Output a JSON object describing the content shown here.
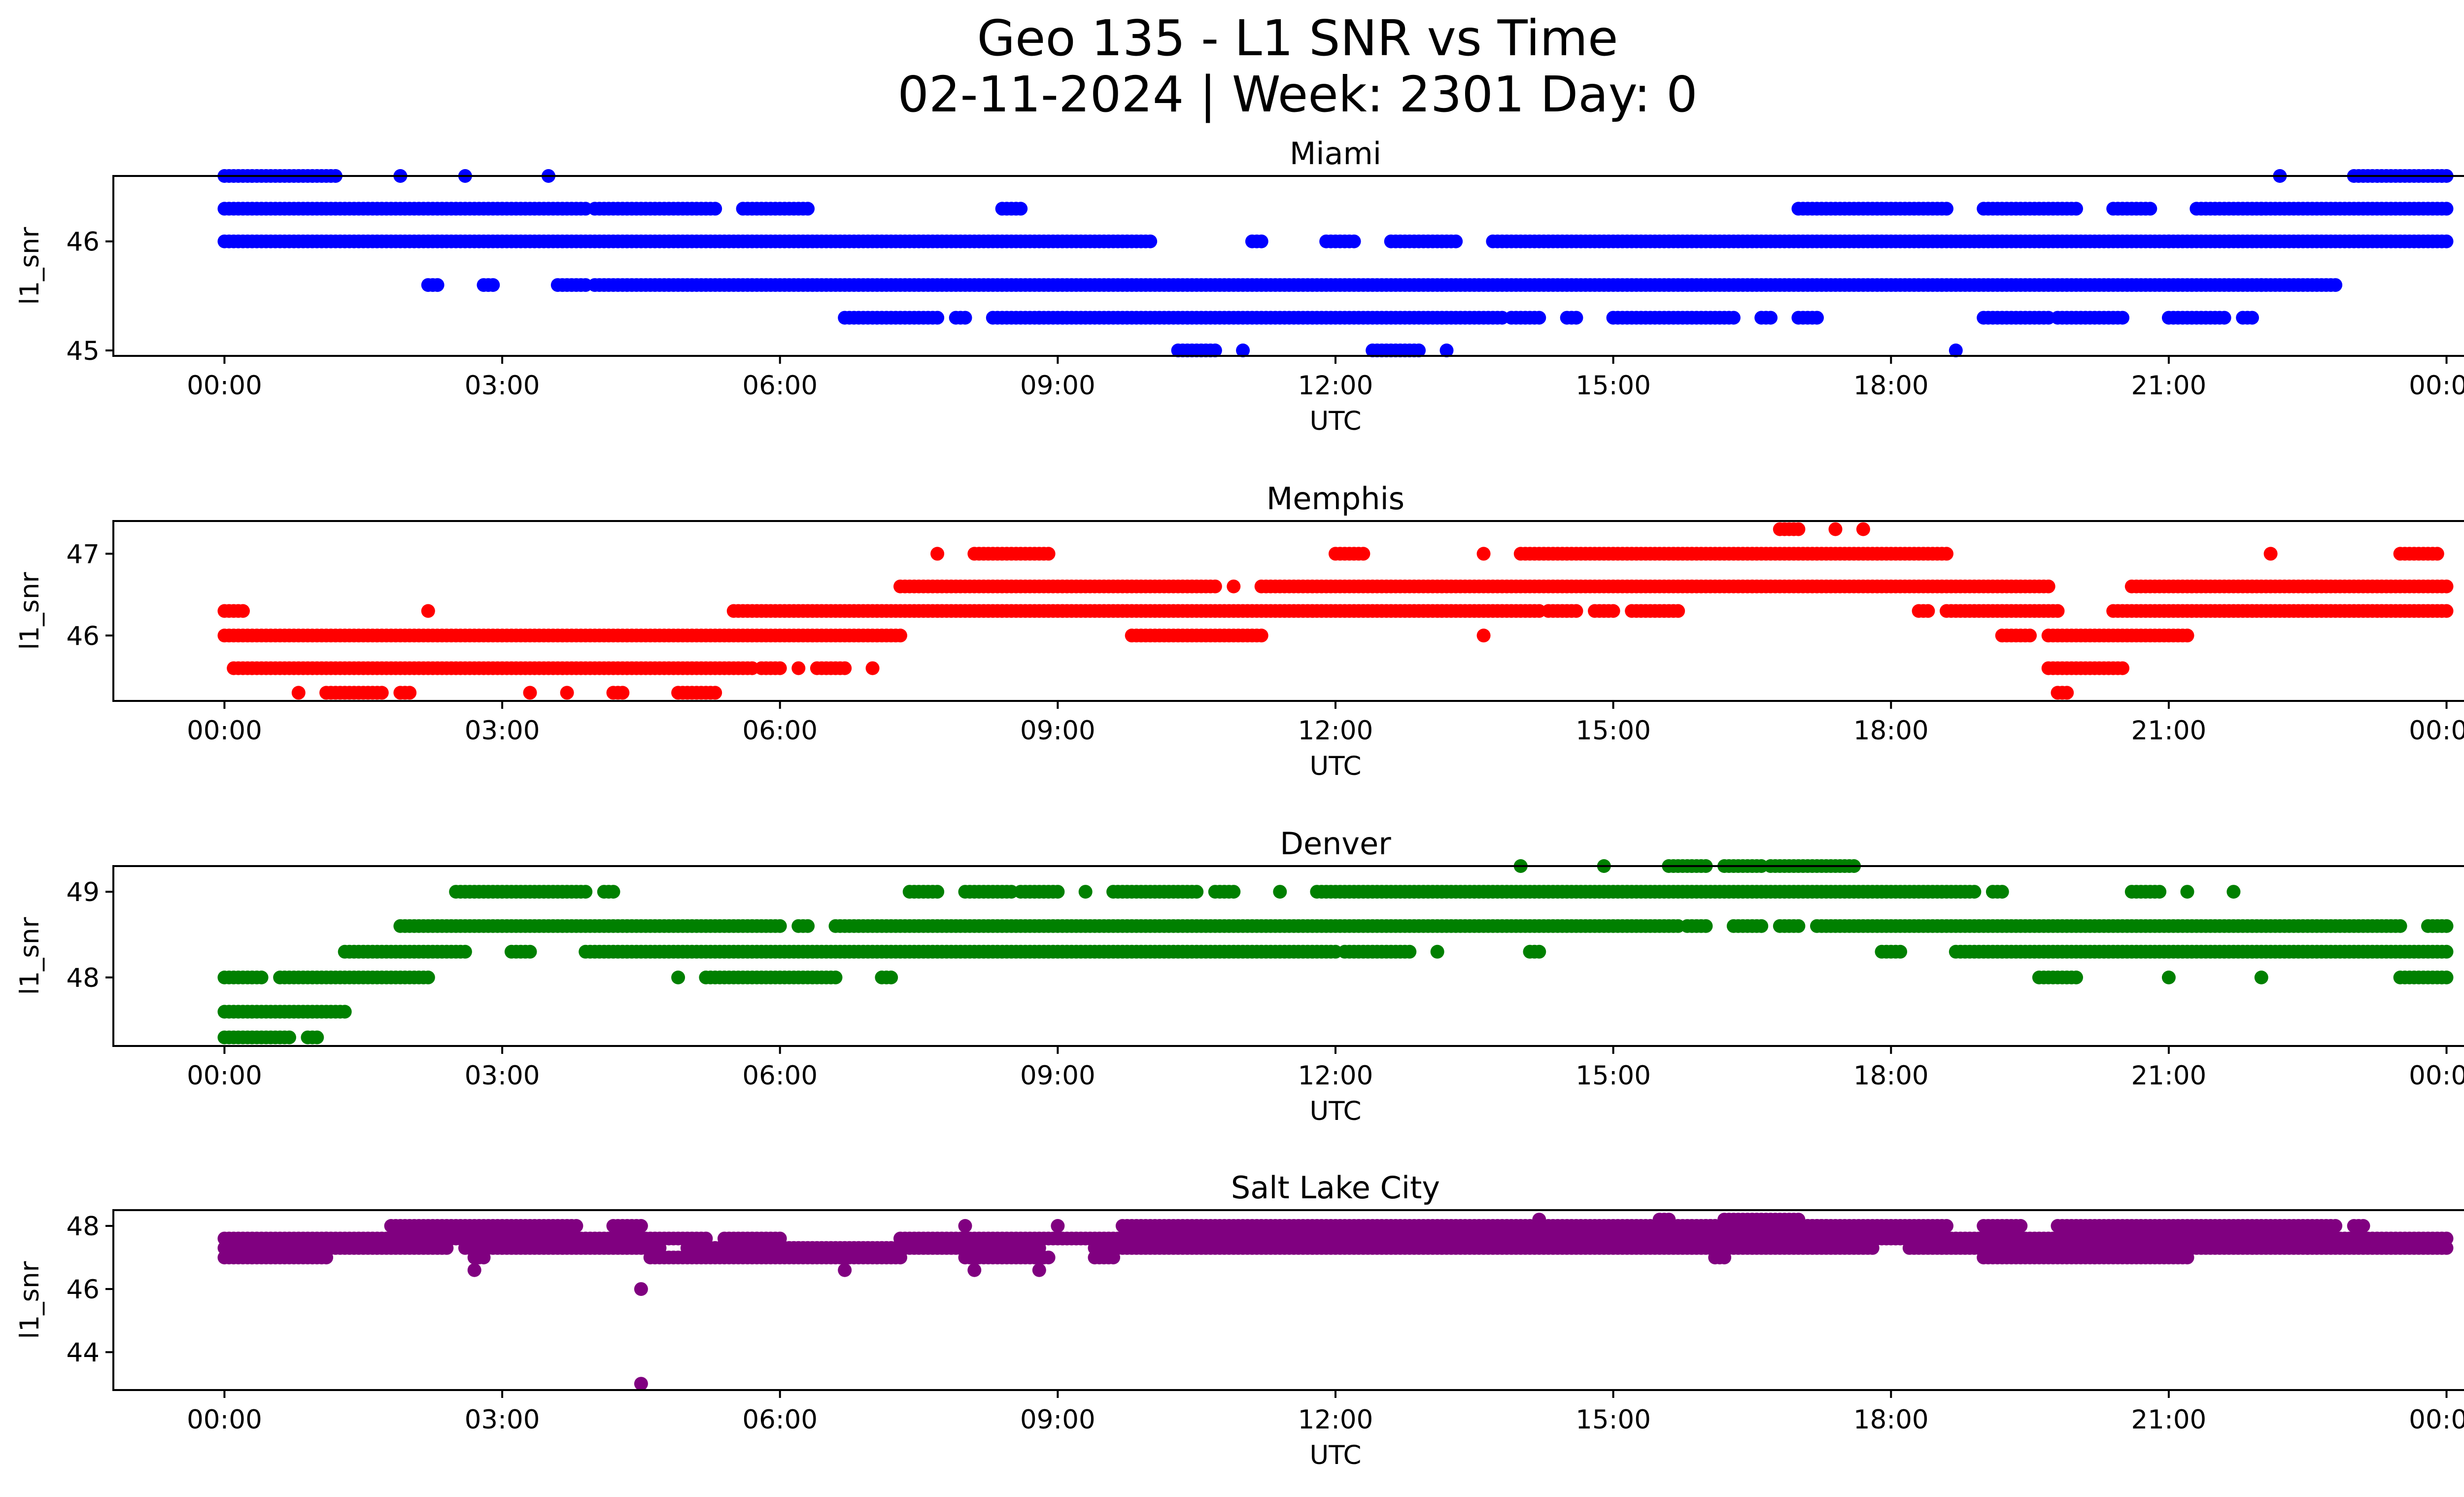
{
  "chart_data": {
    "type": "scatter",
    "title": "Geo 135 - L1 SNR vs Time",
    "subtitle": "02-11-2024 | Week: 2301 Day: 0",
    "xlabel": "UTC",
    "ylabel": "l1_snr",
    "x_unit": "hours UTC",
    "x_range": [
      -1.2,
      25.2
    ],
    "x_ticks": [
      0,
      3,
      6,
      9,
      12,
      15,
      18,
      21,
      24
    ],
    "x_tick_labels": [
      "00:00",
      "03:00",
      "06:00",
      "09:00",
      "12:00",
      "15:00",
      "18:00",
      "21:00",
      "00:00"
    ],
    "panels": [
      {
        "title": "Miami",
        "color": "#0000ff",
        "ylim": [
          44.95,
          46.6
        ],
        "yticks": [
          45,
          46
        ],
        "levels": [
          {
            "y": 46.3,
            "segments": [
              [
                0,
                3.9
              ],
              [
                4.0,
                5.3
              ],
              [
                5.6,
                6.3
              ],
              [
                8.4,
                8.6
              ],
              [
                17.0,
                18.6
              ],
              [
                19.0,
                20.0
              ],
              [
                20.4,
                20.8
              ],
              [
                21.3,
                22.0
              ],
              [
                22.0,
                24.0
              ]
            ]
          },
          {
            "y": 46.0,
            "segments": [
              [
                0,
                10.0
              ],
              [
                11.1,
                11.2
              ],
              [
                11.9,
                12.2
              ],
              [
                12.6,
                13.3
              ],
              [
                13.7,
                21.0
              ],
              [
                21.0,
                24.0
              ]
            ]
          },
          {
            "y": 45.6,
            "segments": [
              [
                2.2,
                2.3
              ],
              [
                2.8,
                2.9
              ],
              [
                3.6,
                3.9
              ],
              [
                4.0,
                22.0
              ],
              [
                22.0,
                22.8
              ]
            ]
          },
          {
            "y": 45.3,
            "segments": [
              [
                6.7,
                7.7
              ],
              [
                7.9,
                8.0
              ],
              [
                8.3,
                8.8
              ],
              [
                8.8,
                13.8
              ],
              [
                13.9,
                14.2
              ],
              [
                14.5,
                14.6
              ],
              [
                15.0,
                16.3
              ],
              [
                16.6,
                16.7
              ],
              [
                17.0,
                17.2
              ],
              [
                19.0,
                19.7
              ],
              [
                19.8,
                20.5
              ],
              [
                21.0,
                21.6
              ],
              [
                21.8,
                21.9
              ]
            ]
          },
          {
            "y": 45.0,
            "segments": [
              [
                10.3,
                10.7
              ],
              [
                11.0,
                11.0
              ],
              [
                12.4,
                12.9
              ],
              [
                13.2,
                13.2
              ],
              [
                18.7,
                18.7
              ]
            ]
          },
          {
            "y": 46.6,
            "segments": [
              [
                0,
                1.2
              ],
              [
                1.9,
                1.9
              ],
              [
                2.6,
                2.6
              ],
              [
                3.5,
                3.5
              ],
              [
                22.2,
                22.2
              ],
              [
                23.0,
                24.0
              ]
            ]
          }
        ]
      },
      {
        "title": "Memphis",
        "color": "#ff0000",
        "ylim": [
          45.2,
          47.4
        ],
        "yticks": [
          46,
          47
        ],
        "levels": [
          {
            "y": 47.3,
            "segments": [
              [
                16.8,
                17.0
              ],
              [
                17.4,
                17.4
              ],
              [
                17.7,
                17.7
              ]
            ]
          },
          {
            "y": 47.0,
            "segments": [
              [
                7.7,
                7.7
              ],
              [
                8.1,
                8.9
              ],
              [
                12.0,
                12.3
              ],
              [
                13.6,
                13.6
              ],
              [
                14.0,
                18.6
              ],
              [
                22.1,
                22.1
              ],
              [
                23.5,
                23.9
              ]
            ]
          },
          {
            "y": 46.6,
            "segments": [
              [
                7.3,
                10.7
              ],
              [
                10.9,
                10.9
              ],
              [
                11.2,
                19.7
              ],
              [
                20.6,
                24.0
              ]
            ]
          },
          {
            "y": 46.3,
            "segments": [
              [
                0.0,
                0.2
              ],
              [
                2.2,
                2.2
              ],
              [
                5.5,
                14.2
              ],
              [
                14.3,
                14.6
              ],
              [
                14.8,
                15.0
              ],
              [
                15.2,
                15.7
              ],
              [
                18.3,
                18.4
              ],
              [
                18.6,
                19.8
              ],
              [
                20.4,
                24.0
              ]
            ]
          },
          {
            "y": 46.0,
            "segments": [
              [
                0.0,
                7.3
              ],
              [
                9.8,
                11.2
              ],
              [
                13.6,
                13.6
              ],
              [
                19.2,
                19.5
              ],
              [
                19.7,
                21.2
              ]
            ]
          },
          {
            "y": 45.6,
            "segments": [
              [
                0.1,
                5.7
              ],
              [
                5.8,
                6.0
              ],
              [
                6.2,
                6.2
              ],
              [
                6.4,
                6.7
              ],
              [
                7.0,
                7.0
              ],
              [
                19.7,
                20.5
              ]
            ]
          },
          {
            "y": 45.3,
            "segments": [
              [
                0.8,
                0.8
              ],
              [
                1.1,
                1.7
              ],
              [
                1.9,
                2.0
              ],
              [
                3.3,
                3.3
              ],
              [
                3.7,
                3.7
              ],
              [
                4.2,
                4.3
              ],
              [
                4.9,
                5.3
              ],
              [
                19.8,
                19.9
              ]
            ]
          }
        ]
      },
      {
        "title": "Denver",
        "color": "#008000",
        "ylim": [
          47.2,
          49.3
        ],
        "yticks": [
          48,
          49
        ],
        "levels": [
          {
            "y": 49.3,
            "segments": [
              [
                14.0,
                14.0
              ],
              [
                14.9,
                14.9
              ],
              [
                15.6,
                16.0
              ],
              [
                16.2,
                16.6
              ],
              [
                16.7,
                17.6
              ]
            ]
          },
          {
            "y": 49.0,
            "segments": [
              [
                2.5,
                3.9
              ],
              [
                4.1,
                4.2
              ],
              [
                7.4,
                7.7
              ],
              [
                8.0,
                8.5
              ],
              [
                8.6,
                9.0
              ],
              [
                9.3,
                9.3
              ],
              [
                9.6,
                10.5
              ],
              [
                10.7,
                10.9
              ],
              [
                11.4,
                11.4
              ],
              [
                11.8,
                18.9
              ],
              [
                19.1,
                19.2
              ],
              [
                20.6,
                20.9
              ],
              [
                21.2,
                21.2
              ],
              [
                21.7,
                21.7
              ]
            ]
          },
          {
            "y": 48.6,
            "segments": [
              [
                1.9,
                6.0
              ],
              [
                6.2,
                6.3
              ],
              [
                6.6,
                15.7
              ],
              [
                15.8,
                16.0
              ],
              [
                16.3,
                16.6
              ],
              [
                16.8,
                17.0
              ],
              [
                17.2,
                23.5
              ],
              [
                23.8,
                24.0
              ]
            ]
          },
          {
            "y": 48.3,
            "segments": [
              [
                1.3,
                2.6
              ],
              [
                3.1,
                3.3
              ],
              [
                3.9,
                12.0
              ],
              [
                12.1,
                12.8
              ],
              [
                13.1,
                13.1
              ],
              [
                14.1,
                14.2
              ],
              [
                17.9,
                18.1
              ],
              [
                18.7,
                24.0
              ]
            ]
          },
          {
            "y": 48.0,
            "segments": [
              [
                0.0,
                0.4
              ],
              [
                0.6,
                2.2
              ],
              [
                4.9,
                4.9
              ],
              [
                5.2,
                6.6
              ],
              [
                7.1,
                7.2
              ],
              [
                19.6,
                20.0
              ],
              [
                21.0,
                21.0
              ],
              [
                22.0,
                22.0
              ],
              [
                23.5,
                24.0
              ]
            ]
          },
          {
            "y": 47.6,
            "segments": [
              [
                0.0,
                1.3
              ]
            ]
          },
          {
            "y": 47.3,
            "segments": [
              [
                0.0,
                0.7
              ],
              [
                0.9,
                1.0
              ]
            ]
          }
        ]
      },
      {
        "title": "Salt Lake City",
        "color": "#800080",
        "ylim": [
          42.8,
          48.5
        ],
        "yticks": [
          44,
          46,
          48
        ],
        "levels": [
          {
            "y": 48.2,
            "segments": [
              [
                14.2,
                14.2
              ],
              [
                15.5,
                15.6
              ],
              [
                16.2,
                17.0
              ]
            ]
          },
          {
            "y": 48.0,
            "segments": [
              [
                1.8,
                3.8
              ],
              [
                4.2,
                4.5
              ],
              [
                8.0,
                8.0
              ],
              [
                9.0,
                9.0
              ],
              [
                9.7,
                18.6
              ],
              [
                19.0,
                19.4
              ],
              [
                19.8,
                22.8
              ],
              [
                23.0,
                23.1
              ],
              [
                16.0,
                17.3
              ]
            ]
          },
          {
            "y": 47.6,
            "segments": [
              [
                0.0,
                1.1
              ],
              [
                1.1,
                5.2
              ],
              [
                5.4,
                6.0
              ],
              [
                7.3,
                24.0
              ]
            ]
          },
          {
            "y": 47.3,
            "segments": [
              [
                0.0,
                2.4
              ],
              [
                2.6,
                4.7
              ],
              [
                5.0,
                8.8
              ],
              [
                9.4,
                17.8
              ],
              [
                18.2,
                22.5
              ],
              [
                22.5,
                24.0
              ]
            ]
          },
          {
            "y": 47.0,
            "segments": [
              [
                0.0,
                1.1
              ],
              [
                2.7,
                2.8
              ],
              [
                4.6,
                7.3
              ],
              [
                8.0,
                8.9
              ],
              [
                9.4,
                9.6
              ],
              [
                16.1,
                16.2
              ],
              [
                19.0,
                21.2
              ],
              [
                20.2,
                20.2
              ]
            ]
          },
          {
            "y": 46.6,
            "segments": [
              [
                2.7,
                2.7
              ],
              [
                6.7,
                6.7
              ],
              [
                8.1,
                8.1
              ],
              [
                8.8,
                8.8
              ]
            ]
          },
          {
            "y": 46.0,
            "segments": [
              [
                4.5,
                4.5
              ]
            ]
          },
          {
            "y": 43.0,
            "segments": [
              [
                4.5,
                4.5
              ]
            ]
          }
        ]
      }
    ]
  }
}
